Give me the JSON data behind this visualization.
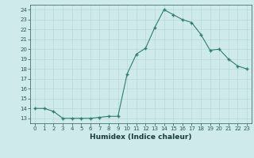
{
  "x": [
    0,
    1,
    2,
    3,
    4,
    5,
    6,
    7,
    8,
    9,
    10,
    11,
    12,
    13,
    14,
    15,
    16,
    17,
    18,
    19,
    20,
    21,
    22,
    23
  ],
  "y": [
    14,
    14,
    13.7,
    13,
    13,
    13,
    13,
    13.1,
    13.2,
    13.2,
    17.5,
    19.5,
    20.1,
    22.2,
    24.0,
    23.5,
    23.0,
    22.7,
    21.5,
    19.9,
    20.0,
    19.0,
    18.3,
    18.0
  ],
  "xlabel": "Humidex (Indice chaleur)",
  "xlim": [
    -0.5,
    23.5
  ],
  "ylim": [
    12.5,
    24.5
  ],
  "yticks": [
    13,
    14,
    15,
    16,
    17,
    18,
    19,
    20,
    21,
    22,
    23,
    24
  ],
  "xticks": [
    0,
    1,
    2,
    3,
    4,
    5,
    6,
    7,
    8,
    9,
    10,
    11,
    12,
    13,
    14,
    15,
    16,
    17,
    18,
    19,
    20,
    21,
    22,
    23
  ],
  "line_color": "#2d7e72",
  "bg_color": "#ceeaea",
  "grid_color": "#b8d8d8",
  "tick_label_color": "#2d5a5a",
  "xlabel_color": "#1a3a3a",
  "tick_fontsize": 5.0,
  "xlabel_fontsize": 6.5
}
